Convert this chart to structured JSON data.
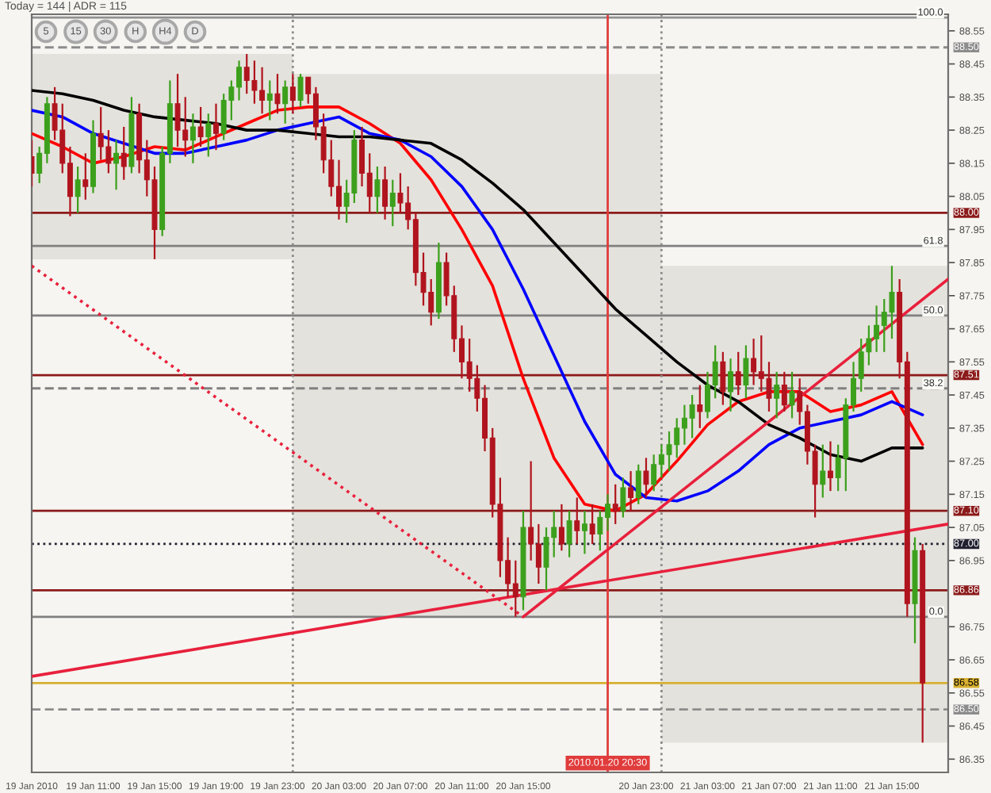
{
  "chart_data": {
    "type": "candlestick",
    "xlim": [
      "2010-01-19T07:00",
      "2010-01-21T18:40"
    ],
    "ylim": [
      86.31,
      88.6
    ],
    "xticks": [
      {
        "value": "2010-01-19T07:00",
        "label": "19 Jan 2010"
      },
      {
        "value": "2010-01-19T11:00",
        "label": "19 Jan 11:00"
      },
      {
        "value": "2010-01-19T15:00",
        "label": "19 Jan 15:00"
      },
      {
        "value": "2010-01-19T19:00",
        "label": "19 Jan 19:00"
      },
      {
        "value": "2010-01-19T23:00",
        "label": "19 Jan 23:00"
      },
      {
        "value": "2010-01-20T03:00",
        "label": "20 Jan 03:00"
      },
      {
        "value": "2010-01-20T07:00",
        "label": "20 Jan 07:00"
      },
      {
        "value": "2010-01-20T11:00",
        "label": "20 Jan 11:00"
      },
      {
        "value": "2010-01-20T15:00",
        "label": "20 Jan 15:00"
      },
      {
        "value": "2010-01-20T23:00",
        "label": "20 Jan 23:00"
      },
      {
        "value": "2010-01-21T03:00",
        "label": "21 Jan 03:00"
      },
      {
        "value": "2010-01-21T07:00",
        "label": "21 Jan 07:00"
      },
      {
        "value": "2010-01-21T11:00",
        "label": "21 Jan 11:00"
      },
      {
        "value": "2010-01-21T15:00",
        "label": "21 Jan 15:00"
      }
    ],
    "yticks": [
      88.55,
      88.45,
      88.35,
      88.25,
      88.15,
      88.05,
      87.95,
      87.85,
      87.75,
      87.65,
      87.55,
      87.45,
      87.35,
      87.25,
      87.15,
      87.05,
      86.95,
      86.75,
      86.65,
      86.55,
      86.45,
      86.35
    ],
    "series": [
      {
        "type": "bar",
        "x": [
          "2010-01-19T12:00",
          "2010-01-20T12:00",
          "2010-01-21T12:00"
        ],
        "base": [
          87.86,
          86.78,
          86.4
        ],
        "values": [
          0.62,
          1.64,
          1.44
        ],
        "color": "#e4e2dc"
      },
      {
        "x": [
          "2010-01-19T07:00",
          "2010-01-19T07:30",
          "2010-01-19T08:00",
          "2010-01-19T08:30",
          "2010-01-19T09:00",
          "2010-01-19T09:30",
          "2010-01-19T10:00",
          "2010-01-19T10:30",
          "2010-01-19T11:00",
          "2010-01-19T11:30",
          "2010-01-19T12:00",
          "2010-01-19T12:30",
          "2010-01-19T13:00",
          "2010-01-19T13:30",
          "2010-01-19T14:00",
          "2010-01-19T14:30",
          "2010-01-19T15:00",
          "2010-01-19T15:30",
          "2010-01-19T16:00",
          "2010-01-19T16:30",
          "2010-01-19T17:00",
          "2010-01-19T17:30",
          "2010-01-19T18:00",
          "2010-01-19T18:30",
          "2010-01-19T19:00",
          "2010-01-19T19:30",
          "2010-01-19T20:00",
          "2010-01-19T20:30",
          "2010-01-19T21:00",
          "2010-01-19T21:30",
          "2010-01-19T22:00",
          "2010-01-19T22:30",
          "2010-01-19T23:00",
          "2010-01-19T23:30",
          "2010-01-20T00:00",
          "2010-01-20T00:30",
          "2010-01-20T01:00",
          "2010-01-20T01:30",
          "2010-01-20T02:00",
          "2010-01-20T02:30",
          "2010-01-20T03:00",
          "2010-01-20T03:30",
          "2010-01-20T04:00",
          "2010-01-20T04:30",
          "2010-01-20T05:00",
          "2010-01-20T05:30",
          "2010-01-20T06:00",
          "2010-01-20T06:30",
          "2010-01-20T07:00",
          "2010-01-20T07:30",
          "2010-01-20T08:00",
          "2010-01-20T08:30",
          "2010-01-20T09:00",
          "2010-01-20T09:30",
          "2010-01-20T10:00",
          "2010-01-20T10:30",
          "2010-01-20T11:00",
          "2010-01-20T11:30",
          "2010-01-20T12:00",
          "2010-01-20T12:30",
          "2010-01-20T13:00",
          "2010-01-20T13:30",
          "2010-01-20T14:00",
          "2010-01-20T14:30",
          "2010-01-20T15:00",
          "2010-01-20T15:30",
          "2010-01-20T16:00",
          "2010-01-20T16:30",
          "2010-01-20T17:00",
          "2010-01-20T17:30",
          "2010-01-20T18:00",
          "2010-01-20T18:30",
          "2010-01-20T19:00",
          "2010-01-20T19:30",
          "2010-01-20T20:00",
          "2010-01-20T20:30",
          "2010-01-20T21:00",
          "2010-01-20T21:30",
          "2010-01-20T22:00",
          "2010-01-20T22:30",
          "2010-01-20T23:00",
          "2010-01-20T23:30",
          "2010-01-21T00:00",
          "2010-01-21T00:30",
          "2010-01-21T01:00",
          "2010-01-21T01:30",
          "2010-01-21T02:00",
          "2010-01-21T02:30",
          "2010-01-21T03:00",
          "2010-01-21T03:30",
          "2010-01-21T04:00",
          "2010-01-21T04:30",
          "2010-01-21T05:00",
          "2010-01-21T05:30",
          "2010-01-21T06:00",
          "2010-01-21T06:30",
          "2010-01-21T07:00",
          "2010-01-21T07:30",
          "2010-01-21T08:00",
          "2010-01-21T08:30",
          "2010-01-21T09:00",
          "2010-01-21T09:30",
          "2010-01-21T10:00",
          "2010-01-21T10:30",
          "2010-01-21T11:00",
          "2010-01-21T11:30",
          "2010-01-21T12:00",
          "2010-01-21T12:30",
          "2010-01-21T13:00",
          "2010-01-21T13:30",
          "2010-01-21T14:00",
          "2010-01-21T14:30",
          "2010-01-21T15:00",
          "2010-01-21T15:30",
          "2010-01-21T16:00",
          "2010-01-21T16:30",
          "2010-01-21T17:00"
        ],
        "ohlc": [
          [
            88.17,
            88.22,
            88.08,
            88.12
          ],
          [
            88.12,
            88.2,
            88.09,
            88.18
          ],
          [
            88.18,
            88.35,
            88.15,
            88.33
          ],
          [
            88.33,
            88.38,
            88.22,
            88.25
          ],
          [
            88.25,
            88.33,
            88.12,
            88.15
          ],
          [
            88.15,
            88.2,
            87.99,
            88.05
          ],
          [
            88.05,
            88.14,
            88.0,
            88.1
          ],
          [
            88.1,
            88.18,
            88.04,
            88.08
          ],
          [
            88.08,
            88.28,
            88.06,
            88.24
          ],
          [
            88.24,
            88.32,
            88.16,
            88.2
          ],
          [
            88.2,
            88.25,
            88.12,
            88.15
          ],
          [
            88.15,
            88.22,
            88.07,
            88.18
          ],
          [
            88.18,
            88.26,
            88.1,
            88.14
          ],
          [
            88.14,
            88.35,
            88.12,
            88.3
          ],
          [
            88.3,
            88.33,
            88.12,
            88.16
          ],
          [
            88.16,
            88.22,
            88.05,
            88.1
          ],
          [
            88.1,
            88.14,
            87.86,
            87.95
          ],
          [
            87.95,
            88.2,
            87.93,
            88.18
          ],
          [
            88.18,
            88.4,
            88.15,
            88.33
          ],
          [
            88.33,
            88.42,
            88.2,
            88.25
          ],
          [
            88.25,
            88.35,
            88.17,
            88.22
          ],
          [
            88.22,
            88.3,
            88.15,
            88.26
          ],
          [
            88.26,
            88.32,
            88.2,
            88.23
          ],
          [
            88.23,
            88.3,
            88.17,
            88.27
          ],
          [
            88.27,
            88.33,
            88.19,
            88.24
          ],
          [
            88.24,
            88.36,
            88.22,
            88.34
          ],
          [
            88.34,
            88.4,
            88.28,
            88.38
          ],
          [
            88.38,
            88.46,
            88.34,
            88.44
          ],
          [
            88.44,
            88.48,
            88.36,
            88.4
          ],
          [
            88.4,
            88.46,
            88.33,
            88.37
          ],
          [
            88.37,
            88.44,
            88.3,
            88.34
          ],
          [
            88.34,
            88.4,
            88.28,
            88.36
          ],
          [
            88.36,
            88.42,
            88.3,
            88.33
          ],
          [
            88.33,
            88.4,
            88.27,
            88.38
          ],
          [
            88.38,
            88.42,
            88.3,
            88.34
          ],
          [
            88.34,
            88.42,
            88.32,
            88.41
          ],
          [
            88.41,
            88.41,
            88.33,
            88.36
          ],
          [
            88.36,
            88.38,
            88.22,
            88.26
          ],
          [
            88.26,
            88.3,
            88.12,
            88.16
          ],
          [
            88.16,
            88.22,
            88.05,
            88.08
          ],
          [
            88.08,
            88.16,
            87.98,
            88.02
          ],
          [
            88.02,
            88.1,
            87.97,
            88.06
          ],
          [
            88.06,
            88.25,
            88.03,
            88.22
          ],
          [
            88.22,
            88.26,
            88.08,
            88.12
          ],
          [
            88.12,
            88.18,
            88.0,
            88.05
          ],
          [
            88.05,
            88.14,
            88.0,
            88.1
          ],
          [
            88.1,
            88.14,
            87.98,
            88.02
          ],
          [
            88.02,
            88.1,
            87.96,
            88.06
          ],
          [
            88.06,
            88.12,
            88.0,
            88.03
          ],
          [
            88.03,
            88.08,
            87.95,
            87.98
          ],
          [
            87.98,
            88.0,
            87.78,
            87.82
          ],
          [
            87.82,
            87.88,
            87.72,
            87.76
          ],
          [
            87.76,
            87.8,
            87.66,
            87.7
          ],
          [
            87.7,
            87.91,
            87.68,
            87.85
          ],
          [
            87.85,
            87.88,
            87.72,
            87.75
          ],
          [
            87.75,
            87.78,
            87.58,
            87.62
          ],
          [
            87.62,
            87.66,
            87.5,
            87.55
          ],
          [
            87.55,
            87.62,
            87.46,
            87.5
          ],
          [
            87.5,
            87.54,
            87.4,
            87.44
          ],
          [
            87.44,
            87.48,
            87.28,
            87.32
          ],
          [
            87.32,
            87.35,
            87.08,
            87.12
          ],
          [
            87.12,
            87.2,
            86.9,
            86.95
          ],
          [
            86.95,
            87.02,
            86.84,
            86.88
          ],
          [
            86.88,
            86.95,
            86.78,
            86.84
          ],
          [
            86.84,
            87.1,
            86.8,
            87.05
          ],
          [
            87.05,
            87.25,
            86.95,
            87.0
          ],
          [
            87.0,
            87.06,
            86.88,
            86.93
          ],
          [
            86.93,
            87.05,
            86.86,
            87.02
          ],
          [
            87.02,
            87.1,
            86.96,
            87.05
          ],
          [
            87.05,
            87.12,
            86.98,
            87.0
          ],
          [
            87.0,
            87.1,
            86.96,
            87.07
          ],
          [
            87.07,
            87.14,
            87.0,
            87.04
          ],
          [
            87.04,
            87.1,
            86.97,
            87.06
          ],
          [
            87.06,
            87.12,
            87.0,
            87.03
          ],
          [
            87.03,
            87.1,
            86.98,
            87.08
          ],
          [
            87.08,
            87.15,
            87.04,
            87.12
          ],
          [
            87.12,
            87.18,
            87.06,
            87.1
          ],
          [
            87.1,
            87.2,
            87.08,
            87.17
          ],
          [
            87.17,
            87.22,
            87.1,
            87.14
          ],
          [
            87.14,
            87.24,
            87.12,
            87.22
          ],
          [
            87.22,
            87.26,
            87.14,
            87.18
          ],
          [
            87.18,
            87.27,
            87.16,
            87.24
          ],
          [
            87.24,
            87.3,
            87.2,
            87.27
          ],
          [
            87.27,
            87.34,
            87.22,
            87.3
          ],
          [
            87.3,
            87.38,
            87.26,
            87.35
          ],
          [
            87.35,
            87.42,
            87.3,
            87.38
          ],
          [
            87.38,
            87.45,
            87.32,
            87.42
          ],
          [
            87.42,
            87.48,
            87.35,
            87.4
          ],
          [
            87.4,
            87.52,
            87.38,
            87.48
          ],
          [
            87.48,
            87.6,
            87.44,
            87.55
          ],
          [
            87.55,
            87.58,
            87.42,
            87.46
          ],
          [
            87.46,
            87.56,
            87.4,
            87.52
          ],
          [
            87.52,
            87.58,
            87.45,
            87.48
          ],
          [
            87.48,
            87.6,
            87.44,
            87.56
          ],
          [
            87.56,
            87.62,
            87.48,
            87.52
          ],
          [
            87.52,
            87.63,
            87.46,
            87.5
          ],
          [
            87.5,
            87.55,
            87.4,
            87.44
          ],
          [
            87.44,
            87.52,
            87.38,
            87.48
          ],
          [
            87.48,
            87.52,
            87.4,
            87.42
          ],
          [
            87.42,
            87.52,
            87.38,
            87.46
          ],
          [
            87.46,
            87.5,
            87.36,
            87.4
          ],
          [
            87.4,
            87.42,
            87.24,
            87.28
          ],
          [
            87.28,
            87.3,
            87.08,
            87.18
          ],
          [
            87.18,
            87.3,
            87.14,
            87.22
          ],
          [
            87.22,
            87.31,
            87.16,
            87.2
          ],
          [
            87.2,
            87.3,
            87.16,
            87.26
          ],
          [
            87.26,
            87.44,
            87.16,
            87.42
          ],
          [
            87.42,
            87.55,
            87.4,
            87.5
          ],
          [
            87.5,
            87.62,
            87.46,
            87.58
          ],
          [
            87.58,
            87.66,
            87.54,
            87.62
          ],
          [
            87.62,
            87.72,
            87.58,
            87.66
          ],
          [
            87.66,
            87.74,
            87.58,
            87.7
          ],
          [
            87.7,
            87.84,
            87.62,
            87.76
          ],
          [
            87.76,
            87.8,
            87.5,
            87.55
          ],
          [
            87.55,
            87.58,
            86.78,
            86.82
          ],
          [
            86.82,
            87.02,
            86.7,
            86.98
          ],
          [
            86.98,
            87.0,
            86.4,
            86.58
          ]
        ],
        "colors": [
          "#b0141e",
          "#3ca01c",
          "#3ca01c",
          "#b0141e",
          "#b0141e",
          "#b0141e",
          "#3ca01c",
          "#b0141e",
          "#3ca01c",
          "#b0141e",
          "#b0141e",
          "#3ca01c",
          "#b0141e",
          "#3ca01c",
          "#b0141e",
          "#b0141e",
          "#b0141e",
          "#3ca01c",
          "#3ca01c",
          "#b0141e",
          "#b0141e",
          "#3ca01c",
          "#b0141e",
          "#3ca01c",
          "#b0141e",
          "#3ca01c",
          "#3ca01c",
          "#3ca01c",
          "#b0141e",
          "#b0141e",
          "#b0141e",
          "#3ca01c",
          "#b0141e",
          "#3ca01c",
          "#b0141e",
          "#3ca01c",
          "#b0141e",
          "#b0141e",
          "#b0141e",
          "#b0141e",
          "#b0141e",
          "#3ca01c",
          "#3ca01c",
          "#b0141e",
          "#b0141e",
          "#3ca01c",
          "#b0141e",
          "#3ca01c",
          "#b0141e",
          "#b0141e",
          "#b0141e",
          "#b0141e",
          "#b0141e",
          "#3ca01c",
          "#b0141e",
          "#b0141e",
          "#b0141e",
          "#b0141e",
          "#b0141e",
          "#b0141e",
          "#b0141e",
          "#b0141e",
          "#b0141e",
          "#b0141e",
          "#3ca01c",
          "#b0141e",
          "#b0141e",
          "#3ca01c",
          "#3ca01c",
          "#b0141e",
          "#3ca01c",
          "#b0141e",
          "#3ca01c",
          "#b0141e",
          "#3ca01c",
          "#3ca01c",
          "#b0141e",
          "#3ca01c",
          "#b0141e",
          "#3ca01c",
          "#b0141e",
          "#3ca01c",
          "#3ca01c",
          "#3ca01c",
          "#3ca01c",
          "#3ca01c",
          "#3ca01c",
          "#b0141e",
          "#3ca01c",
          "#3ca01c",
          "#b0141e",
          "#3ca01c",
          "#b0141e",
          "#3ca01c",
          "#b0141e",
          "#b0141e",
          "#b0141e",
          "#3ca01c",
          "#b0141e",
          "#3ca01c",
          "#b0141e",
          "#b0141e",
          "#b0141e",
          "#3ca01c",
          "#b0141e",
          "#3ca01c",
          "#3ca01c",
          "#3ca01c",
          "#3ca01c",
          "#3ca01c",
          "#3ca01c",
          "#3ca01c",
          "#3ca01c",
          "#b0141e",
          "#b0141e",
          "#3ca01c",
          "#b0141e"
        ]
      },
      {
        "type": "line",
        "color": "#ff0000",
        "x": [
          "2010-01-19T07:00",
          "2010-01-19T09:00",
          "2010-01-19T11:00",
          "2010-01-19T13:00",
          "2010-01-19T15:00",
          "2010-01-19T17:00",
          "2010-01-19T19:00",
          "2010-01-19T21:00",
          "2010-01-19T23:00",
          "2010-01-20T01:00",
          "2010-01-20T03:00",
          "2010-01-20T05:00",
          "2010-01-20T07:00",
          "2010-01-20T09:00",
          "2010-01-20T11:00",
          "2010-01-20T13:00",
          "2010-01-20T15:00",
          "2010-01-20T17:00",
          "2010-01-20T19:00",
          "2010-01-20T21:00",
          "2010-01-20T23:00",
          "2010-01-21T01:00",
          "2010-01-21T03:00",
          "2010-01-21T05:00",
          "2010-01-21T07:00",
          "2010-01-21T09:00",
          "2010-01-21T11:00",
          "2010-01-21T13:00",
          "2010-01-21T15:00",
          "2010-01-21T17:00"
        ],
        "values": [
          88.24,
          88.2,
          88.15,
          88.17,
          88.2,
          88.19,
          88.23,
          88.27,
          88.31,
          88.32,
          88.32,
          88.27,
          88.21,
          88.1,
          87.95,
          87.78,
          87.5,
          87.26,
          87.12,
          87.1,
          87.15,
          87.25,
          87.36,
          87.43,
          87.46,
          87.46,
          87.4,
          87.42,
          87.46,
          87.3
        ]
      },
      {
        "type": "line",
        "color": "#0000ff",
        "x": [
          "2010-01-19T07:00",
          "2010-01-19T09:00",
          "2010-01-19T11:00",
          "2010-01-19T13:00",
          "2010-01-19T15:00",
          "2010-01-19T17:00",
          "2010-01-19T19:00",
          "2010-01-19T21:00",
          "2010-01-19T23:00",
          "2010-01-20T01:00",
          "2010-01-20T03:00",
          "2010-01-20T05:00",
          "2010-01-20T07:00",
          "2010-01-20T09:00",
          "2010-01-20T11:00",
          "2010-01-20T13:00",
          "2010-01-20T15:00",
          "2010-01-20T17:00",
          "2010-01-20T19:00",
          "2010-01-20T21:00",
          "2010-01-20T23:00",
          "2010-01-21T01:00",
          "2010-01-21T03:00",
          "2010-01-21T05:00",
          "2010-01-21T07:00",
          "2010-01-21T09:00",
          "2010-01-21T11:00",
          "2010-01-21T13:00",
          "2010-01-21T15:00",
          "2010-01-21T17:00"
        ],
        "values": [
          88.31,
          88.29,
          88.24,
          88.21,
          88.18,
          88.18,
          88.2,
          88.22,
          88.25,
          88.27,
          88.29,
          88.24,
          88.22,
          88.17,
          88.08,
          87.95,
          87.77,
          87.57,
          87.37,
          87.21,
          87.14,
          87.13,
          87.16,
          87.22,
          87.3,
          87.35,
          87.37,
          87.39,
          87.43,
          87.39
        ]
      },
      {
        "type": "line",
        "color": "#000000",
        "x": [
          "2010-01-19T07:00",
          "2010-01-19T09:00",
          "2010-01-19T11:00",
          "2010-01-19T13:00",
          "2010-01-19T15:00",
          "2010-01-19T17:00",
          "2010-01-19T19:00",
          "2010-01-19T21:00",
          "2010-01-19T23:00",
          "2010-01-20T01:00",
          "2010-01-20T03:00",
          "2010-01-20T05:00",
          "2010-01-20T07:00",
          "2010-01-20T09:00",
          "2010-01-20T11:00",
          "2010-01-20T13:00",
          "2010-01-20T15:00",
          "2010-01-20T17:00",
          "2010-01-20T19:00",
          "2010-01-20T21:00",
          "2010-01-20T23:00",
          "2010-01-21T01:00",
          "2010-01-21T03:00",
          "2010-01-21T05:00",
          "2010-01-21T07:00",
          "2010-01-21T09:00",
          "2010-01-21T11:00",
          "2010-01-21T13:00",
          "2010-01-21T15:00",
          "2010-01-21T17:00"
        ],
        "values": [
          88.37,
          88.36,
          88.34,
          88.31,
          88.29,
          88.28,
          88.27,
          88.25,
          88.25,
          88.24,
          88.23,
          88.23,
          88.22,
          88.21,
          88.16,
          88.09,
          88.01,
          87.91,
          87.81,
          87.71,
          87.63,
          87.55,
          87.48,
          87.43,
          87.36,
          87.32,
          87.27,
          87.25,
          87.29,
          87.29
        ]
      },
      {
        "type": "line",
        "color": "#e8203c",
        "x": [
          "2010-01-19T07:00",
          "2010-01-21T18:40"
        ],
        "values": [
          86.6,
          87.06
        ]
      },
      {
        "type": "line",
        "color": "#e8203c",
        "x": [
          "2010-01-20T15:00",
          "2010-01-21T18:40"
        ],
        "values": [
          86.78,
          87.8
        ]
      },
      {
        "type": "line",
        "color": "#e8203c",
        "line_style": "dotted",
        "x": [
          "2010-01-19T07:00",
          "2010-01-20T15:00"
        ],
        "values": [
          87.84,
          86.78
        ]
      }
    ],
    "ref_lines": [
      {
        "axis": "y",
        "value": 88.59,
        "color": "#909090"
      },
      {
        "axis": "y",
        "value": 88.5,
        "label": "88.50",
        "color": "#8c8c8c",
        "line_style": "dashed"
      },
      {
        "axis": "y",
        "value": 88.0,
        "label": "88.00",
        "color": "#8b1a1a"
      },
      {
        "axis": "y",
        "value": 87.9,
        "color": "#808080"
      },
      {
        "axis": "y",
        "value": 87.69,
        "color": "#808080"
      },
      {
        "axis": "y",
        "value": 87.51,
        "label": "87.51",
        "color": "#8b1a1a"
      },
      {
        "axis": "y",
        "value": 87.47,
        "color": "#808080",
        "line_style": "dashed"
      },
      {
        "axis": "y",
        "value": 87.1,
        "label": "87.10",
        "color": "#8b1a1a"
      },
      {
        "axis": "y",
        "value": 87.0,
        "label": "87.00",
        "color": "#202030",
        "line_style": "dotted"
      },
      {
        "axis": "y",
        "value": 86.86,
        "label": "86.86",
        "color": "#8b1a1a"
      },
      {
        "axis": "y",
        "value": 86.78,
        "color": "#808080"
      },
      {
        "axis": "y",
        "value": 86.58,
        "label": "86.58",
        "color": "#d8b030"
      },
      {
        "axis": "y",
        "value": 86.5,
        "label": "86.50",
        "color": "#8c8c8c",
        "line_style": "dashed"
      },
      {
        "axis": "x",
        "value": "2010-01-20T00:00",
        "color": "#8c8c8c",
        "line_style": "dotted"
      },
      {
        "axis": "x",
        "value": "2010-01-21T00:00",
        "color": "#8c8c8c",
        "line_style": "dotted"
      },
      {
        "axis": "x",
        "value": "2010-01-20T20:30",
        "label": "2010.01.20 20:30",
        "color": "#e03c3c"
      }
    ],
    "annotations": [
      "Today = 144 | ADR = 115",
      "5",
      "15",
      "30",
      "H",
      "H4",
      "D",
      {
        "text": "100.0",
        "x": "2010-01-21T18:20",
        "y": 88.59
      },
      {
        "text": "61.8",
        "x": "2010-01-21T18:20",
        "y": 87.9
      },
      {
        "text": "50.0",
        "x": "2010-01-21T18:20",
        "y": 87.69
      },
      {
        "text": "38.2",
        "x": "2010-01-21T18:20",
        "y": 87.47
      },
      {
        "text": "0.0",
        "x": "2010-01-21T18:20",
        "y": 86.78
      }
    ]
  }
}
